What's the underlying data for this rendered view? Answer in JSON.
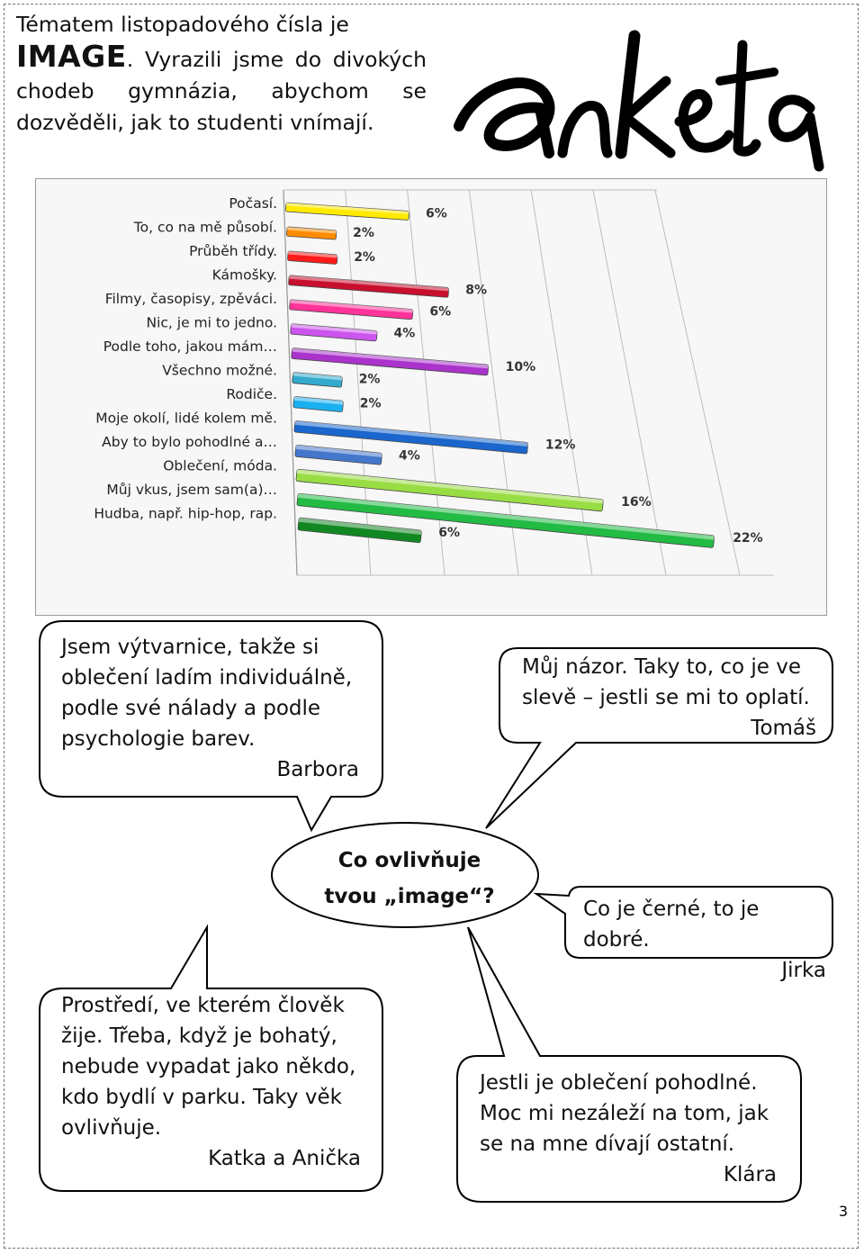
{
  "intro": {
    "line1_prefix": "Tématem listopadového čísla je",
    "image_word": "IMAGE",
    "line2_rest": ". Vyrazili jsme do divokých chodeb gymnázia, abychom se dozvěděli, jak to studenti vnímají."
  },
  "logo_text": "anketa",
  "chart_data": {
    "type": "bar",
    "orientation": "horizontal-3d",
    "categories": [
      "Počasí.",
      "To, co na mě působí.",
      "Průběh třídy.",
      "Kámošky.",
      "Filmy, časopisy, zpěváci.",
      "Nic, je mi to jedno.",
      "Podle toho, jakou mám…",
      "Všechno možné.",
      "Rodiče.",
      "Moje okolí, lidé kolem mě.",
      "Aby to bylo pohodlné a…",
      "Oblečení, móda.",
      "Můj vkus, jsem sam(a)…",
      "Hudba, např. hip-hop, rap."
    ],
    "values": [
      6,
      2,
      2,
      8,
      6,
      4,
      10,
      2,
      2,
      12,
      4,
      16,
      22,
      6
    ],
    "labels": [
      "6%",
      "2%",
      "2%",
      "8%",
      "6%",
      "4%",
      "10%",
      "2%",
      "2%",
      "12%",
      "4%",
      "16%",
      "22%",
      "6%"
    ],
    "colors": [
      "#ffea00",
      "#ff8c00",
      "#ff1a1a",
      "#c8102e",
      "#ff3399",
      "#cc55ee",
      "#aa33cc",
      "#33aacc",
      "#1ab0f0",
      "#1a66cc",
      "#4477cc",
      "#99dd44",
      "#22bb44",
      "#118822"
    ],
    "xlim": [
      0,
      24
    ],
    "grid": true
  },
  "bubbles": {
    "barbora": {
      "text": "Jsem výtvarnice, takže si oblečení ladím individuálně, podle své nálady a podle psychologie barev.",
      "sig": "Barbora"
    },
    "tomas": {
      "text": "Můj názor. Taky to, co je ve slevě – jestli se mi to oplatí.",
      "sig": "Tomáš"
    },
    "center": {
      "line1": "Co ovlivňuje",
      "line2": "tvou „image“?"
    },
    "jirka": {
      "text": "Co je černé, to je dobré.",
      "sig": "Jirka"
    },
    "katka": {
      "text": "Prostředí, ve kterém člověk žije. Třeba, když je bohatý, nebude vypadat jako někdo, kdo bydlí v parku. Taky věk ovlivňuje.",
      "sig": "Katka a Anička"
    },
    "klara": {
      "text": "Jestli je oblečení pohodlné. Moc mi nezáleží na tom, jak se na mne dívají ostatní.",
      "sig": "Klára"
    }
  },
  "page_number": "3"
}
